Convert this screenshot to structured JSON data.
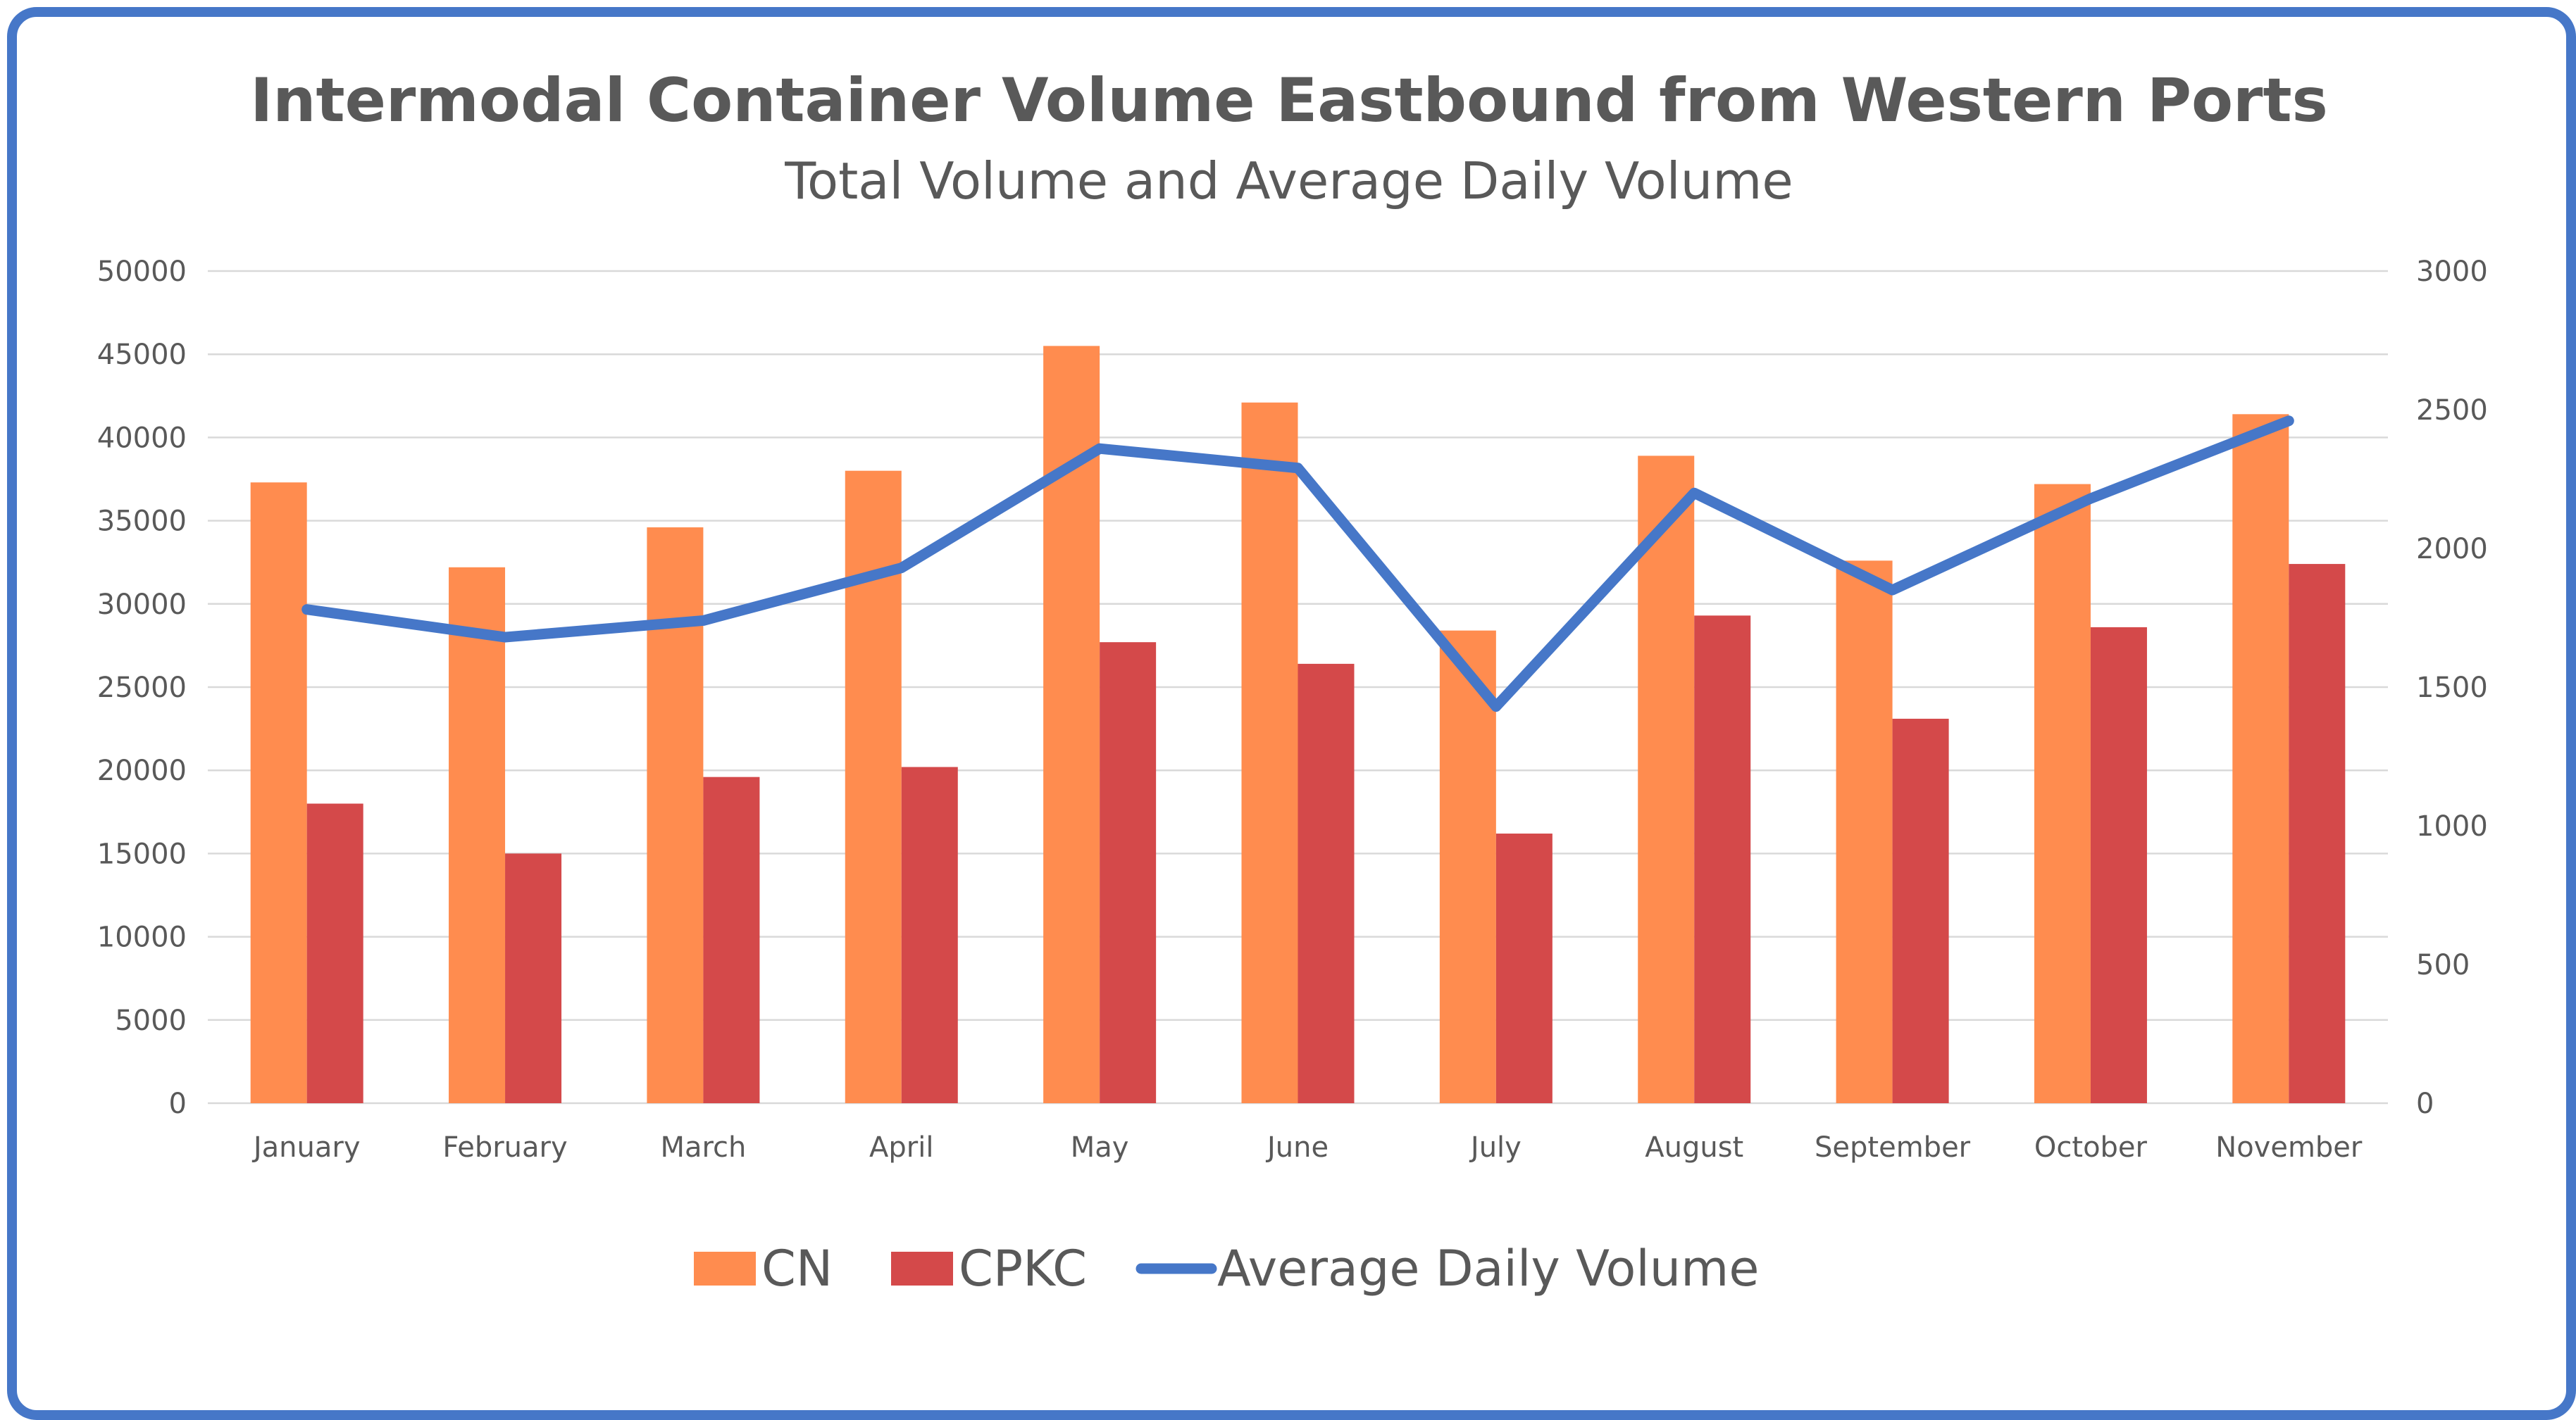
{
  "chart_data": {
    "type": "bar",
    "title": "Intermodal Container Volume Eastbound from Western Ports",
    "subtitle": "Total Volume and Average Daily Volume",
    "categories": [
      "January",
      "February",
      "March",
      "April",
      "May",
      "June",
      "July",
      "August",
      "September",
      "October",
      "November"
    ],
    "series": [
      {
        "name": "CN",
        "type": "bar",
        "axis": "left",
        "color": "#ff8c4f",
        "values": [
          37300,
          32200,
          34600,
          38000,
          45500,
          42100,
          28400,
          38900,
          32600,
          37200,
          41400
        ]
      },
      {
        "name": "CPKC",
        "type": "bar",
        "axis": "left",
        "color": "#d4494a",
        "values": [
          18000,
          15000,
          19600,
          20200,
          27700,
          26400,
          16200,
          29300,
          23100,
          28600,
          32400
        ]
      },
      {
        "name": "Average Daily Volume",
        "type": "line",
        "axis": "right",
        "color": "#4677c8",
        "values": [
          1780,
          1680,
          1740,
          1930,
          2360,
          2290,
          1430,
          2200,
          1850,
          2180,
          2460
        ]
      }
    ],
    "left_axis": {
      "min": 0,
      "max": 50000,
      "step": 5000,
      "ticks": [
        "0",
        "5000",
        "10000",
        "15000",
        "20000",
        "25000",
        "30000",
        "35000",
        "40000",
        "45000",
        "50000"
      ]
    },
    "right_axis": {
      "min": 0,
      "max": 3000,
      "step": 500,
      "ticks": [
        "0",
        "500",
        "1000",
        "1500",
        "2000",
        "2500",
        "3000"
      ]
    },
    "grid": true,
    "legend_position": "bottom"
  }
}
